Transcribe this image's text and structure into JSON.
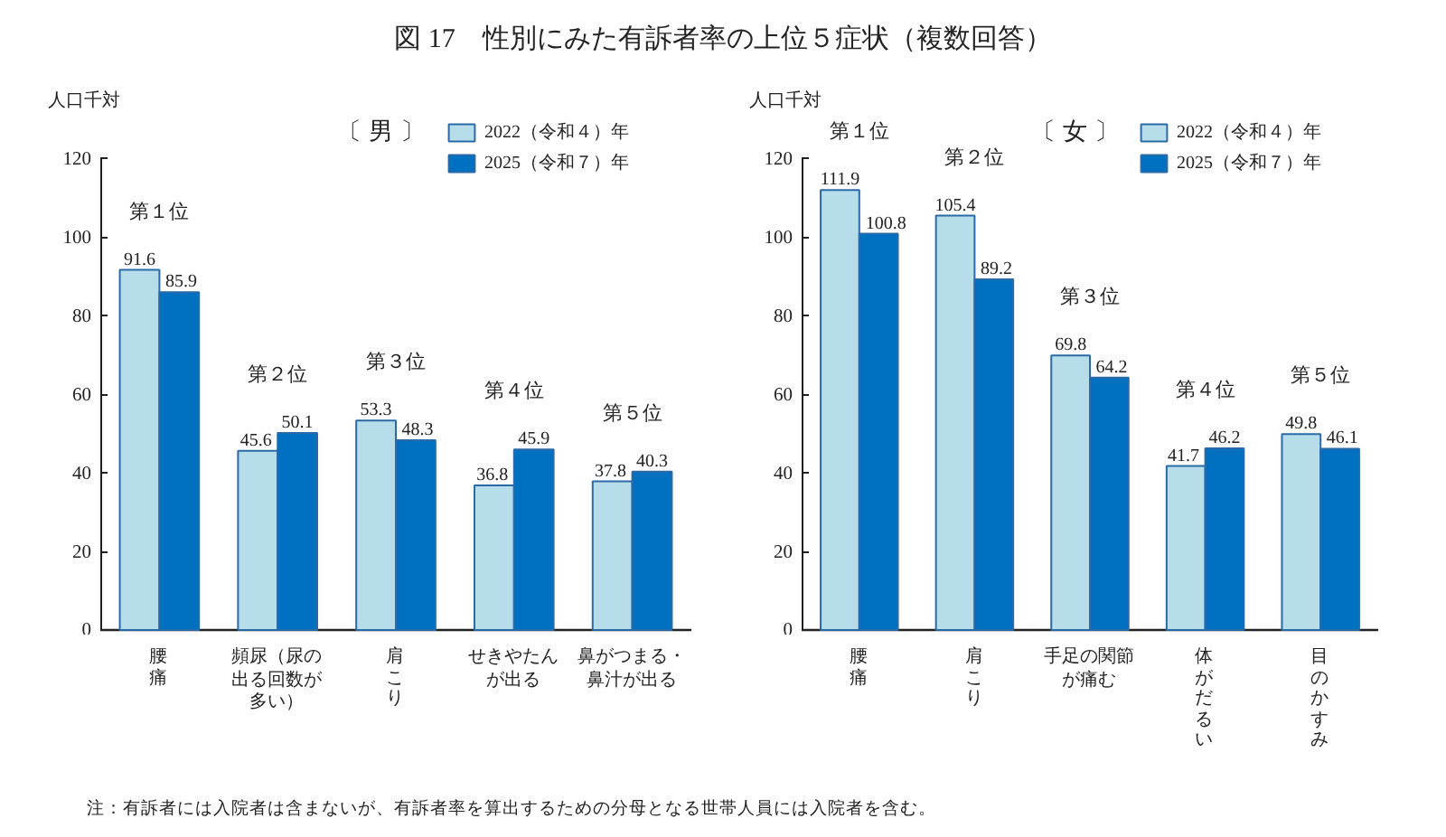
{
  "chart_data": [
    {
      "type": "bar",
      "title": "図 17　性別にみた有訴者率の上位５症状（複数回答）",
      "subtitle": "〔 男 〕",
      "ylabel": "人口千対",
      "categories": [
        "腰痛",
        "頻尿（尿の出る回数が多い）",
        "肩こり",
        "せきやたんが出る",
        "鼻がつまる・鼻汁が出る"
      ],
      "series": [
        {
          "name": "2022（令和４）年",
          "color": "#b7ddea",
          "values": [
            91.6,
            45.6,
            53.3,
            36.8,
            37.8
          ]
        },
        {
          "name": "2025（令和７）年",
          "color": "#0070c0",
          "values": [
            85.9,
            50.1,
            48.3,
            45.9,
            40.3
          ]
        }
      ],
      "ylim": [
        0,
        120
      ],
      "yticks": [
        0,
        20,
        40,
        60,
        80,
        100,
        120
      ],
      "data_labels": true,
      "legend": "top right",
      "annotations": [
        "第１位",
        "第２位",
        "第３位",
        "第４位",
        "第５位",
        "注：有訴者には入院者は含まないが、有訴者率を算出するための分母となる世帯人員には入院者を含む。"
      ]
    },
    {
      "type": "bar",
      "subtitle": "〔 女 〕",
      "ylabel": "人口千対",
      "categories": [
        "腰痛",
        "肩こり",
        "手足の関節が痛む",
        "体がだるい",
        "目のかすみ"
      ],
      "series": [
        {
          "name": "2022（令和４）年",
          "color": "#b7ddea",
          "values": [
            111.9,
            105.4,
            69.8,
            41.7,
            49.8
          ]
        },
        {
          "name": "2025（令和７）年",
          "color": "#0070c0",
          "values": [
            100.8,
            89.2,
            64.2,
            46.2,
            46.1
          ]
        }
      ],
      "ylim": [
        0,
        120
      ],
      "yticks": [
        0,
        20,
        40,
        60,
        80,
        100,
        120
      ],
      "data_labels": true,
      "legend": "top right",
      "annotations": [
        "第１位",
        "第２位",
        "第３位",
        "第４位",
        "第５位"
      ]
    }
  ]
}
